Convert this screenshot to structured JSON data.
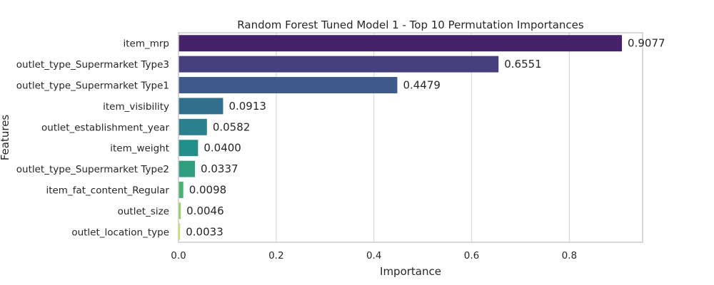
{
  "chart_data": {
    "type": "bar",
    "orientation": "horizontal",
    "title": "Random Forest Tuned Model 1 - Top 10 Permutation Importances",
    "xlabel": "Importance",
    "ylabel": "Features",
    "xlim": [
      0,
      0.95
    ],
    "xticks": [
      0.0,
      0.2,
      0.4,
      0.6,
      0.8
    ],
    "xtick_labels": [
      "0.0",
      "0.2",
      "0.4",
      "0.6",
      "0.8"
    ],
    "grid": true,
    "palette": "viridis",
    "categories": [
      "item_mrp",
      "outlet_type_Supermarket Type3",
      "outlet_type_Supermarket Type1",
      "item_visibility",
      "outlet_establishment_year",
      "item_weight",
      "outlet_type_Supermarket Type2",
      "item_fat_content_Regular",
      "outlet_size",
      "outlet_location_type"
    ],
    "values": [
      0.9077,
      0.6551,
      0.4479,
      0.0913,
      0.0582,
      0.04,
      0.0337,
      0.0098,
      0.0046,
      0.0033
    ],
    "value_labels": [
      "0.9077",
      "0.6551",
      "0.4479",
      "0.0913",
      "0.0582",
      "0.0400",
      "0.0337",
      "0.0098",
      "0.0046",
      "0.0033"
    ],
    "colors": [
      "#46216a",
      "#453f7c",
      "#3d5a8a",
      "#30708d",
      "#2a818d",
      "#238f8b",
      "#2f9e7f",
      "#45b36f",
      "#92cf5a",
      "#cde152"
    ],
    "grid_color": "#d9d9d9",
    "frame_color": "#cccccc"
  }
}
